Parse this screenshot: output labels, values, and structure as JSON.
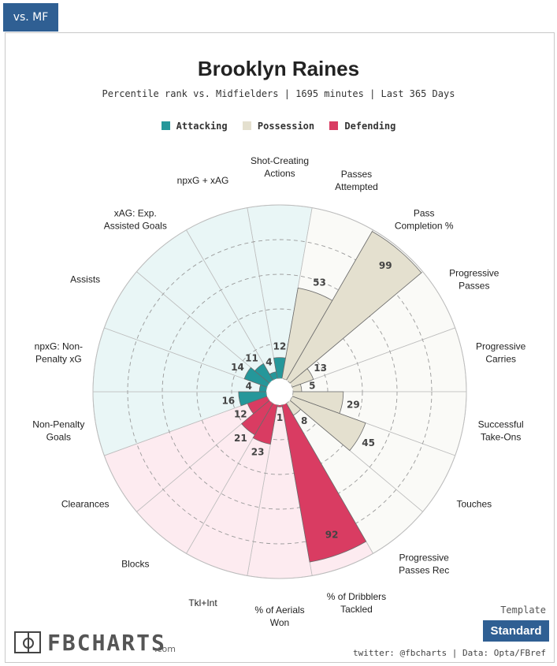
{
  "tab": {
    "label": "vs. MF"
  },
  "header": {
    "title": "Brooklyn Raines",
    "subtitle": "Percentile rank vs. Midfielders | 1695 minutes | Last 365 Days"
  },
  "legend": [
    {
      "label": "Attacking",
      "color": "#25979a"
    },
    {
      "label": "Possession",
      "color": "#e4e0cf"
    },
    {
      "label": "Defending",
      "color": "#d93c62"
    }
  ],
  "chart_data": {
    "type": "polar-bar",
    "title": "Brooklyn Raines",
    "rlim": [
      0,
      100
    ],
    "gridlines": [
      20,
      40,
      60,
      80
    ],
    "categories": [
      {
        "label": "Shot-Creating Actions",
        "value": 12,
        "group": "Attacking"
      },
      {
        "label": "Passes Attempted",
        "value": 53,
        "group": "Possession"
      },
      {
        "label": "Pass Completion %",
        "value": 99,
        "group": "Possession"
      },
      {
        "label": "Progressive Passes",
        "value": 13,
        "group": "Possession"
      },
      {
        "label": "Progressive Carries",
        "value": 5,
        "group": "Possession"
      },
      {
        "label": "Successful Take-Ons",
        "value": 29,
        "group": "Possession"
      },
      {
        "label": "Touches",
        "value": 45,
        "group": "Possession"
      },
      {
        "label": "Progressive Passes Rec",
        "value": 8,
        "group": "Possession"
      },
      {
        "label": "% of Dribblers Tackled",
        "value": 92,
        "group": "Defending"
      },
      {
        "label": "% of Aerials Won",
        "value": 1,
        "group": "Defending"
      },
      {
        "label": "Tkl+Int",
        "value": 23,
        "group": "Defending"
      },
      {
        "label": "Blocks",
        "value": 21,
        "group": "Defending"
      },
      {
        "label": "Clearances",
        "value": 12,
        "group": "Defending"
      },
      {
        "label": "Non-Penalty Goals",
        "value": 16,
        "group": "Attacking"
      },
      {
        "label": "npxG: Non-Penalty xG",
        "value": 4,
        "group": "Attacking"
      },
      {
        "label": "Assists",
        "value": 14,
        "group": "Attacking"
      },
      {
        "label": "xAG: Exp. Assisted Goals",
        "value": 11,
        "group": "Attacking"
      },
      {
        "label": "npxG + xAG",
        "value": 4,
        "group": "Attacking"
      }
    ],
    "background_colors": {
      "Attacking": "#e9f6f6",
      "Possession": "#fafaf7",
      "Defending": "#fdebf0"
    },
    "label_lines": {
      "Shot-Creating Actions": [
        "Shot-Creating",
        "Actions"
      ],
      "Passes Attempted": [
        "Passes",
        "Attempted"
      ],
      "Pass Completion %": [
        "Pass",
        "Completion %"
      ],
      "Progressive Passes": [
        "Progressive",
        "Passes"
      ],
      "Progressive Carries": [
        "Progressive",
        "Carries"
      ],
      "Successful Take-Ons": [
        "Successful",
        "Take-Ons"
      ],
      "Touches": [
        "Touches"
      ],
      "Progressive Passes Rec": [
        "Progressive",
        "Passes Rec"
      ],
      "% of Dribblers Tackled": [
        "% of Dribblers",
        "Tackled"
      ],
      "% of Aerials Won": [
        "% of Aerials",
        "Won"
      ],
      "Tkl+Int": [
        "Tkl+Int"
      ],
      "Blocks": [
        "Blocks"
      ],
      "Clearances": [
        "Clearances"
      ],
      "Non-Penalty Goals": [
        "Non-Penalty",
        "Goals"
      ],
      "npxG: Non-Penalty xG": [
        "npxG: Non-",
        "Penalty xG"
      ],
      "Assists": [
        "Assists"
      ],
      "xAG: Exp. Assisted Goals": [
        "xAG: Exp.",
        "Assisted Goals"
      ],
      "npxG + xAG": [
        "npxG + xAG"
      ]
    }
  },
  "footer": {
    "template_label": "Template",
    "template_value": "Standard",
    "credit": "twitter: @fbcharts | Data: Opta/FBref",
    "brand": "FBCHARTS",
    "brand_suffix": ".com"
  }
}
